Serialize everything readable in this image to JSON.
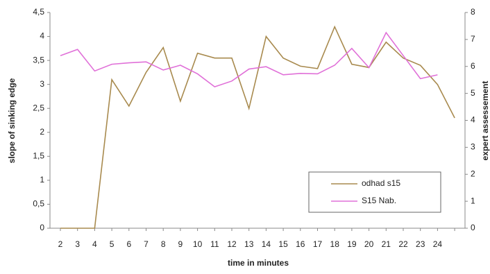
{
  "chart_data": {
    "type": "line",
    "xlabel": "time in minutes",
    "ylabel": "slope of sinking edge",
    "y2label": "expert assessement",
    "categories": [
      "2",
      "3",
      "4",
      "5",
      "6",
      "7",
      "8",
      "9",
      "10",
      "11",
      "12",
      "13",
      "14",
      "15",
      "16",
      "17",
      "18",
      "19",
      "20",
      "21",
      "22",
      "23",
      "24",
      null
    ],
    "series": [
      {
        "name": "odhad s15",
        "color": "#a88a4e",
        "axis": "y2",
        "values": [
          0,
          0,
          0,
          5.51,
          4.53,
          5.78,
          6.7,
          4.71,
          6.49,
          6.31,
          6.31,
          4.44,
          7.11,
          6.31,
          6.01,
          5.92,
          7.47,
          6.08,
          5.96,
          6.9,
          6.31,
          6.04,
          5.33,
          4.09
        ]
      },
      {
        "name": "S15 Nab.",
        "color": "#e070d8",
        "values": [
          3.6,
          3.73,
          3.28,
          3.42,
          3.45,
          3.47,
          3.3,
          3.4,
          3.22,
          2.95,
          3.07,
          3.32,
          3.37,
          3.2,
          3.23,
          3.22,
          3.4,
          3.75,
          3.35,
          4.08,
          3.6,
          3.12,
          3.2,
          null
        ]
      }
    ],
    "ylim": [
      0,
      4.5
    ],
    "yticks": [
      0,
      {
        "value": 0.5,
        "label": "0,5"
      },
      1,
      {
        "value": 1.5,
        "label": "1,5"
      },
      2,
      {
        "value": 2.5,
        "label": "2,5"
      },
      3,
      {
        "value": 3.5,
        "label": "3,5"
      },
      4,
      {
        "value": 4.5,
        "label": "4,5"
      }
    ],
    "y2lim": [
      0,
      8
    ],
    "y2ticks": [
      0,
      1,
      2,
      3,
      4,
      5,
      6,
      7,
      8
    ],
    "legend": "lower right"
  }
}
